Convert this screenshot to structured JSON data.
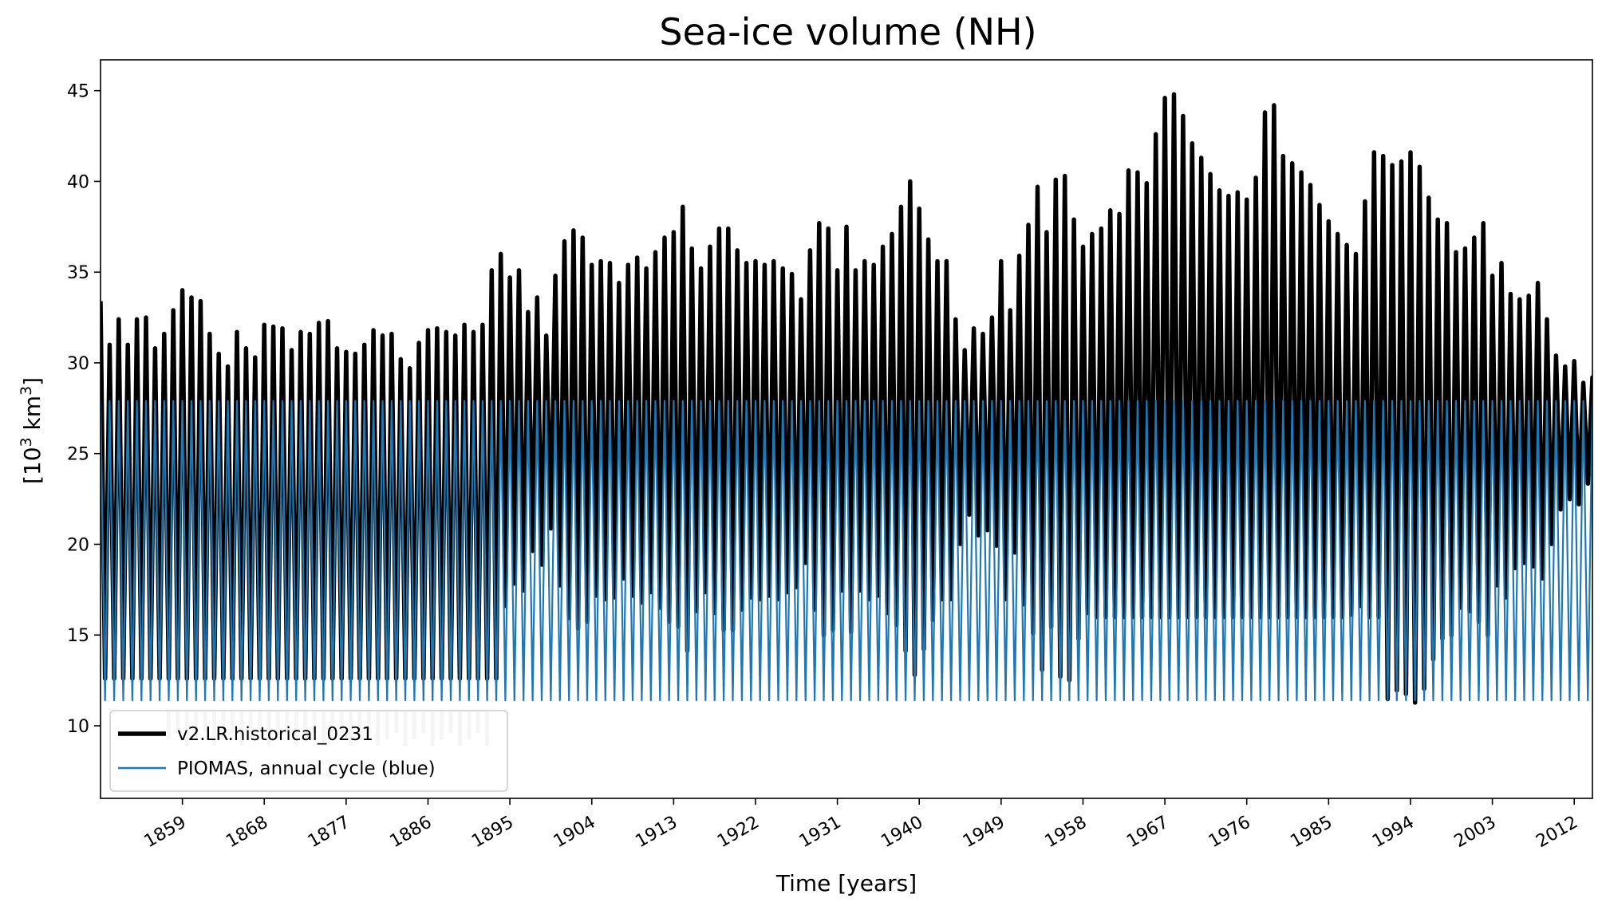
{
  "chart_data": {
    "type": "line",
    "title": "Sea-ice volume (NH)",
    "xlabel": "Time [years]",
    "ylabel": "[10³ km³]",
    "ylabel_base": "[10",
    "ylabel_exp1": "3",
    "ylabel_mid": " km",
    "ylabel_exp2": "3",
    "ylabel_end": "]",
    "xlim": [
      1850,
      2014
    ],
    "ylim": [
      6,
      46.7
    ],
    "xticks": [
      1859,
      1868,
      1877,
      1886,
      1895,
      1904,
      1913,
      1922,
      1931,
      1940,
      1949,
      1958,
      1967,
      1976,
      1985,
      1994,
      2003,
      2012
    ],
    "yticks": [
      10,
      15,
      20,
      25,
      30,
      35,
      40,
      45
    ],
    "legend_position": "lower-left",
    "series": [
      {
        "name": "v2.LR.historical_0231",
        "color": "#000000",
        "note": "annual cycle: yearly maxima and minima (10^3 km^3), 1850-2014",
        "annual_max": [
          33.4,
          31.0,
          32.4,
          31.0,
          32.4,
          32.5,
          30.8,
          31.6,
          32.9,
          34.0,
          33.6,
          33.4,
          31.6,
          30.5,
          29.8,
          31.7,
          30.8,
          30.3,
          32.1,
          32.0,
          31.9,
          30.7,
          31.7,
          31.6,
          32.2,
          32.3,
          30.8,
          30.6,
          30.5,
          31.0,
          31.8,
          31.5,
          31.6,
          30.2,
          29.7,
          31.1,
          31.8,
          31.9,
          31.7,
          31.5,
          32.1,
          31.7,
          32.1,
          35.1,
          36.0,
          34.7,
          35.1,
          32.8,
          33.6,
          31.5,
          34.8,
          36.7,
          37.3,
          36.9,
          35.4,
          35.6,
          35.5,
          34.4,
          35.4,
          35.8,
          35.2,
          36.1,
          36.9,
          37.2,
          38.6,
          36.3,
          35.2,
          36.4,
          37.4,
          37.4,
          36.2,
          35.5,
          35.6,
          35.4,
          35.6,
          35.2,
          34.9,
          33.5,
          36.2,
          37.7,
          37.4,
          35.1,
          37.5,
          35.1,
          35.6,
          35.4,
          36.4,
          37.1,
          38.6,
          40.0,
          38.5,
          36.8,
          35.6,
          35.6,
          32.4,
          30.7,
          31.9,
          31.6,
          32.5,
          35.6,
          32.9,
          35.9,
          37.6,
          39.7,
          37.2,
          40.1,
          40.3,
          37.9,
          36.4,
          37.1,
          37.4,
          38.4,
          38.2,
          40.6,
          40.5,
          39.9,
          42.6,
          44.6,
          44.8,
          43.6,
          42.1,
          41.3,
          40.4,
          39.5,
          39.2,
          39.4,
          39.0,
          40.2,
          43.8,
          44.2,
          41.4,
          41.0,
          40.5,
          39.8,
          38.7,
          37.8,
          37.1,
          36.5,
          36.0,
          38.9,
          41.6,
          41.4,
          40.9,
          41.1,
          41.6,
          40.8,
          39.1,
          37.9,
          37.7,
          36.1,
          36.3,
          36.9,
          37.7,
          34.8,
          35.5,
          33.8,
          33.5,
          33.7,
          34.4,
          32.4,
          30.4,
          29.8,
          30.1,
          28.9,
          29.2
        ]
      },
      {
        "name": "PIOMAS, annual cycle (blue)",
        "color": "#1f77b4",
        "note": "repeated climatological annual cycle",
        "annual_max": 27.9,
        "annual_min": 11.4
      }
    ]
  }
}
